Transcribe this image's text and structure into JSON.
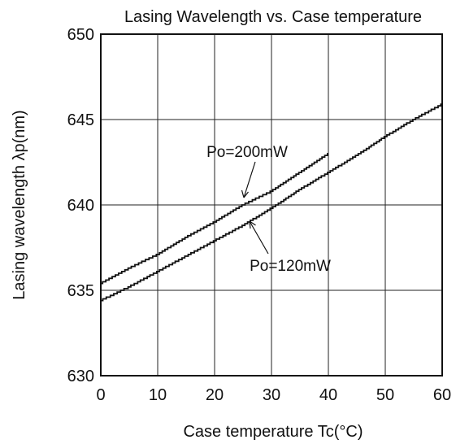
{
  "chart_data": {
    "type": "line",
    "title": "Lasing Wavelength vs. Case temperature",
    "xlabel": "Case temperature Tc(°C)",
    "ylabel": "Lasing wavelength λp(nm)",
    "xlim": [
      0,
      60
    ],
    "ylim": [
      630,
      650
    ],
    "xticks": [
      "0",
      "10",
      "20",
      "30",
      "40",
      "50",
      "60"
    ],
    "yticks": [
      "630",
      "635",
      "640",
      "645",
      "650"
    ],
    "grid": true,
    "series": [
      {
        "name": "Po=200mW",
        "x": [
          0,
          5,
          10,
          15,
          20,
          25,
          30,
          35,
          40
        ],
        "y": [
          635.4,
          636.3,
          637.1,
          638.1,
          639.0,
          640.0,
          640.8,
          641.9,
          643.0
        ]
      },
      {
        "name": "Po=120mW",
        "x": [
          0,
          5,
          10,
          15,
          20,
          25,
          30,
          35,
          40,
          45,
          50,
          55,
          60
        ],
        "y": [
          634.4,
          635.2,
          636.1,
          637.0,
          637.9,
          638.8,
          639.8,
          640.9,
          641.9,
          642.9,
          644.0,
          645.0,
          645.9
        ]
      }
    ]
  }
}
